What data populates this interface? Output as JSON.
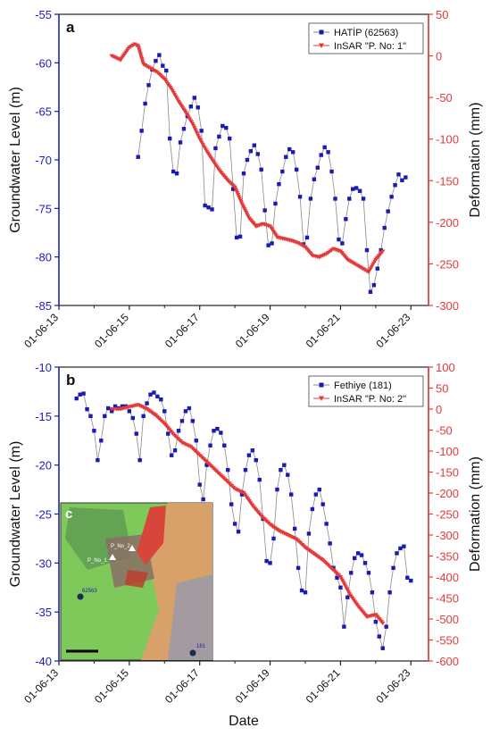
{
  "figure": {
    "xlabel": "Date",
    "inset_label": "c",
    "inset_texts": [
      "P_No_2",
      "P_No_1",
      "62563",
      "181"
    ]
  },
  "chart_data": [
    {
      "panel_label": "a",
      "type": "line",
      "xlabel": "",
      "ylabel": "Groundwater Level (m)",
      "ylabel_right": "Deformation (mm)",
      "x_ticks": [
        "01-06-13",
        "01-06-15",
        "01-06-17",
        "01-06-19",
        "01-06-21",
        "01-06-23"
      ],
      "xlim": [
        2013.0,
        2023.5
      ],
      "ylim": [
        -85,
        -55
      ],
      "yticks": [
        -85,
        -80,
        -75,
        -70,
        -65,
        -60,
        -55
      ],
      "ylim_right": [
        -300,
        50
      ],
      "yticks_right": [
        -300,
        -250,
        -200,
        -150,
        -100,
        -50,
        0,
        50
      ],
      "legend_position": "top-right",
      "series": [
        {
          "name": "HATİP (62563)",
          "axis": "left",
          "color": "#1a1ab4",
          "marker": "square",
          "x": [
            2015.25,
            2015.35,
            2015.45,
            2015.55,
            2015.65,
            2015.75,
            2015.85,
            2015.95,
            2016.05,
            2016.15,
            2016.25,
            2016.35,
            2016.45,
            2016.55,
            2016.65,
            2016.75,
            2016.85,
            2016.95,
            2017.05,
            2017.15,
            2017.25,
            2017.35,
            2017.45,
            2017.55,
            2017.65,
            2017.75,
            2017.85,
            2017.95,
            2018.05,
            2018.15,
            2018.25,
            2018.35,
            2018.45,
            2018.55,
            2018.65,
            2018.75,
            2018.85,
            2018.95,
            2019.05,
            2019.15,
            2019.25,
            2019.35,
            2019.45,
            2019.55,
            2019.65,
            2019.75,
            2019.85,
            2019.95,
            2020.05,
            2020.15,
            2020.25,
            2020.35,
            2020.45,
            2020.55,
            2020.65,
            2020.75,
            2020.85,
            2020.95,
            2021.05,
            2021.15,
            2021.25,
            2021.35,
            2021.45,
            2021.55,
            2021.65,
            2021.75,
            2021.85,
            2021.95,
            2022.05,
            2022.15,
            2022.25,
            2022.35,
            2022.45,
            2022.55,
            2022.65,
            2022.75,
            2022.85
          ],
          "values": [
            -69.7,
            -67.0,
            -64.2,
            -62.3,
            -60.7,
            -59.8,
            -59.2,
            -60.3,
            -60.8,
            -67.8,
            -71.2,
            -71.4,
            -68.2,
            -66.8,
            -65.5,
            -64.5,
            -63.6,
            -64.6,
            -67.0,
            -74.7,
            -74.9,
            -75.1,
            -68.8,
            -67.6,
            -66.5,
            -66.7,
            -67.8,
            -73.0,
            -78.0,
            -77.9,
            -71.4,
            -70.0,
            -69.1,
            -68.5,
            -69.4,
            -71.0,
            -75.2,
            -78.8,
            -78.6,
            -74.5,
            -72.5,
            -71.2,
            -69.7,
            -68.9,
            -69.2,
            -71.0,
            -73.8,
            -78.7,
            -78.0,
            -74.0,
            -72.0,
            -70.8,
            -69.5,
            -68.7,
            -69.2,
            -71.2,
            -74.0,
            -78.2,
            -78.6,
            -76.1,
            -74.0,
            -73.0,
            -72.9,
            -73.2,
            -74.0,
            -79.3,
            -83.6,
            -82.9,
            -81.2,
            -79.3,
            -77.0,
            -75.3,
            -73.8,
            -72.6,
            -71.5,
            -72.1,
            -71.8
          ]
        },
        {
          "name": "InSAR \"P. No: 1\"",
          "axis": "right",
          "color": "#e23b3b",
          "marker": "triangle-down",
          "x": [
            2014.5,
            2014.75,
            2015.0,
            2015.15,
            2015.25,
            2015.4,
            2015.6,
            2015.8,
            2016.0,
            2016.2,
            2016.4,
            2016.6,
            2016.8,
            2017.0,
            2017.2,
            2017.4,
            2017.6,
            2017.8,
            2018.0,
            2018.2,
            2018.4,
            2018.6,
            2018.8,
            2019.0,
            2019.2,
            2019.4,
            2019.6,
            2019.8,
            2020.0,
            2020.2,
            2020.4,
            2020.6,
            2020.8,
            2021.0,
            2021.2,
            2021.4,
            2021.6,
            2021.8,
            2022.0,
            2022.2
          ],
          "values": [
            0,
            -5,
            10,
            14,
            12,
            -10,
            -15,
            -20,
            -28,
            -40,
            -55,
            -68,
            -82,
            -100,
            -115,
            -128,
            -140,
            -150,
            -158,
            -178,
            -195,
            -205,
            -202,
            -205,
            -218,
            -220,
            -222,
            -225,
            -230,
            -240,
            -242,
            -238,
            -232,
            -235,
            -245,
            -250,
            -255,
            -260,
            -245,
            -235
          ]
        }
      ]
    },
    {
      "panel_label": "b",
      "type": "line",
      "xlabel": "Date",
      "ylabel": "Groundwater Level (m)",
      "ylabel_right": "Deformation (mm)",
      "x_ticks": [
        "01-06-13",
        "01-06-15",
        "01-06-17",
        "01-06-19",
        "01-06-21",
        "01-06-23"
      ],
      "xlim": [
        2013.0,
        2023.5
      ],
      "ylim": [
        -40,
        -10
      ],
      "yticks": [
        -40,
        -35,
        -30,
        -25,
        -20,
        -15,
        -10
      ],
      "ylim_right": [
        -600,
        100
      ],
      "yticks_right": [
        -600,
        -550,
        -500,
        -450,
        -400,
        -350,
        -300,
        -250,
        -200,
        -150,
        -100,
        -50,
        0,
        50,
        100
      ],
      "legend_position": "top-right",
      "series": [
        {
          "name": "Fethiye (181)",
          "axis": "left",
          "color": "#1a1ab4",
          "marker": "square",
          "x": [
            2013.5,
            2013.6,
            2013.7,
            2013.8,
            2013.9,
            2014.0,
            2014.1,
            2014.2,
            2014.3,
            2014.4,
            2014.5,
            2014.6,
            2014.7,
            2014.8,
            2014.9,
            2015.0,
            2015.1,
            2015.2,
            2015.3,
            2015.4,
            2015.5,
            2015.6,
            2015.7,
            2015.8,
            2015.9,
            2016.0,
            2016.1,
            2016.2,
            2016.3,
            2016.4,
            2016.5,
            2016.6,
            2016.7,
            2016.8,
            2016.9,
            2017.0,
            2017.1,
            2017.2,
            2017.3,
            2017.4,
            2017.5,
            2017.6,
            2017.7,
            2017.8,
            2017.9,
            2018.0,
            2018.1,
            2018.2,
            2018.3,
            2018.4,
            2018.5,
            2018.6,
            2018.7,
            2018.8,
            2018.9,
            2019.0,
            2019.1,
            2019.2,
            2019.3,
            2019.4,
            2019.5,
            2019.6,
            2019.7,
            2019.8,
            2019.9,
            2020.0,
            2020.1,
            2020.2,
            2020.3,
            2020.4,
            2020.5,
            2020.6,
            2020.7,
            2020.8,
            2020.9,
            2021.0,
            2021.1,
            2021.2,
            2021.3,
            2021.4,
            2021.5,
            2021.6,
            2021.7,
            2021.8,
            2021.9,
            2022.0,
            2022.1,
            2022.2,
            2022.3,
            2022.4,
            2022.5,
            2022.6,
            2022.7,
            2022.8,
            2022.9,
            2023.0
          ],
          "values": [
            -13.2,
            -12.8,
            -12.7,
            -14.3,
            -15.0,
            -16.5,
            -19.5,
            -17.5,
            -15.0,
            -14.2,
            -14.5,
            -14.0,
            -14.2,
            -14.0,
            -14.0,
            -14.5,
            -15.2,
            -16.8,
            -19.5,
            -15.0,
            -13.7,
            -12.8,
            -12.6,
            -13.0,
            -13.3,
            -14.5,
            -16.8,
            -19.0,
            -18.5,
            -16.5,
            -15.5,
            -14.5,
            -14.2,
            -15.5,
            -17.5,
            -22.0,
            -23.5,
            -20.0,
            -18.0,
            -16.5,
            -16.3,
            -16.7,
            -18.0,
            -20.5,
            -24.0,
            -26.0,
            -26.8,
            -23.0,
            -20.5,
            -19.0,
            -18.5,
            -19.5,
            -21.5,
            -25.5,
            -29.8,
            -30.0,
            -27.5,
            -22.5,
            -20.5,
            -20.0,
            -21.0,
            -23.0,
            -26.5,
            -30.5,
            -32.8,
            -33.0,
            -27.0,
            -24.5,
            -23.0,
            -22.5,
            -24.0,
            -26.0,
            -28.0,
            -30.5,
            -31.5,
            -32.5,
            -36.5,
            -33.5,
            -31.0,
            -29.5,
            -29.0,
            -29.2,
            -30.0,
            -31.0,
            -33.0,
            -36.0,
            -37.5,
            -38.7,
            -36.5,
            -33.0,
            -30.5,
            -29.0,
            -28.5,
            -28.3,
            -31.5,
            -31.8
          ]
        },
        {
          "name": "InSAR \"P. No: 2\"",
          "axis": "right",
          "color": "#e23b3b",
          "marker": "triangle-down",
          "x": [
            2014.5,
            2014.75,
            2015.0,
            2015.25,
            2015.5,
            2015.75,
            2016.0,
            2016.25,
            2016.5,
            2016.75,
            2017.0,
            2017.25,
            2017.5,
            2017.75,
            2018.0,
            2018.25,
            2018.5,
            2018.75,
            2019.0,
            2019.25,
            2019.5,
            2019.75,
            2020.0,
            2020.25,
            2020.5,
            2020.75,
            2021.0,
            2021.25,
            2021.5,
            2021.75,
            2022.0,
            2022.2
          ],
          "values": [
            0,
            0,
            5,
            10,
            0,
            -15,
            -35,
            -60,
            -80,
            -90,
            -110,
            -130,
            -150,
            -170,
            -190,
            -200,
            -230,
            -255,
            -275,
            -290,
            -300,
            -310,
            -330,
            -345,
            -360,
            -380,
            -400,
            -440,
            -470,
            -495,
            -490,
            -510
          ]
        }
      ]
    }
  ]
}
